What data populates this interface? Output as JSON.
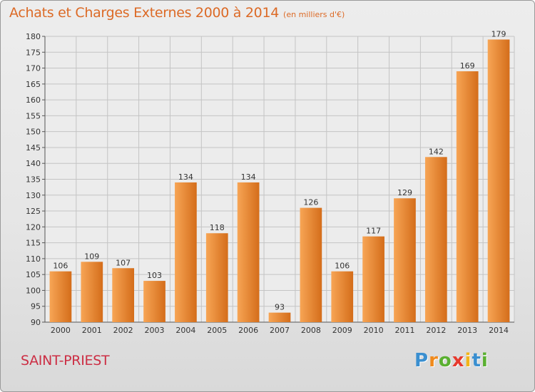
{
  "title": "Achats et Charges Externes 2000 à 2014",
  "title_unit": "(en milliers d'€)",
  "commune": "SAINT-PRIEST",
  "logo": {
    "letters": [
      "P",
      "r",
      "o",
      "x",
      "i",
      "t",
      "i"
    ],
    "colors": [
      "#3a8fd0",
      "#f08a1c",
      "#5ab031",
      "#e63a2e",
      "#f2b51a",
      "#3a8fd0",
      "#5ab031"
    ]
  },
  "colors": {
    "bar_light": "#f7a555",
    "bar_dark": "#d46d1a",
    "title": "#dc6a26",
    "commune": "#cc2e44"
  },
  "chart_data": {
    "type": "bar",
    "title": "Achats et Charges Externes 2000 à 2014",
    "subtitle": "(en milliers d'€)",
    "categories": [
      "2000",
      "2001",
      "2002",
      "2003",
      "2004",
      "2005",
      "2006",
      "2007",
      "2008",
      "2009",
      "2010",
      "2011",
      "2012",
      "2013",
      "2014"
    ],
    "values": [
      106,
      109,
      107,
      103,
      134,
      118,
      134,
      93,
      126,
      106,
      117,
      129,
      142,
      169,
      179
    ],
    "ylim": [
      90,
      180
    ],
    "yticks": [
      90,
      95,
      100,
      105,
      110,
      115,
      120,
      125,
      130,
      135,
      140,
      145,
      150,
      155,
      160,
      165,
      170,
      175,
      180
    ],
    "grid": true,
    "legend": "none"
  }
}
